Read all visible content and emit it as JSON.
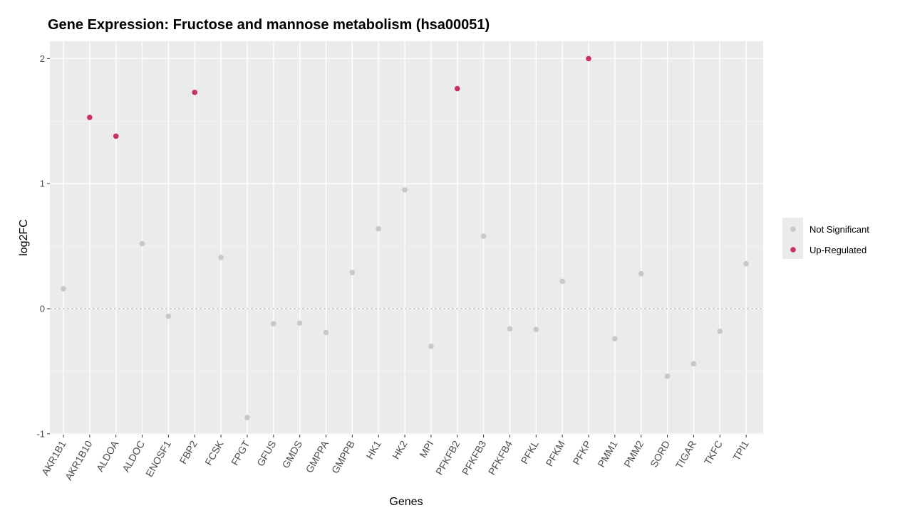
{
  "chart_data": {
    "type": "scatter",
    "title": "Gene Expression: Fructose and mannose metabolism (hsa00051)",
    "xlabel": "Genes",
    "ylabel": "log2FC",
    "ylim": [
      -1.0,
      2.13
    ],
    "yticks": [
      "-1",
      "0",
      "1",
      "2"
    ],
    "grid": true,
    "legend_position": "right",
    "reference_line": 0,
    "categories": [
      "AKR1B1",
      "AKR1B10",
      "ALDOA",
      "ALDOC",
      "ENOSF1",
      "FBP2",
      "FCSK",
      "FPGT",
      "GFUS",
      "GMDS",
      "GMPPA",
      "GMPPB",
      "HK1",
      "HK2",
      "MPI",
      "PFKFB2",
      "PFKFB3",
      "PFKFB4",
      "PFKL",
      "PFKM",
      "PFKP",
      "PMM1",
      "PMM2",
      "SORD",
      "TIGAR",
      "TKFC",
      "TPI1"
    ],
    "series": [
      {
        "name": "Not Significant",
        "color": "#c8c8c8",
        "points": [
          {
            "x": "AKR1B1",
            "y": 0.16
          },
          {
            "x": "ALDOC",
            "y": 0.52
          },
          {
            "x": "ENOSF1",
            "y": -0.06
          },
          {
            "x": "FCSK",
            "y": 0.41
          },
          {
            "x": "FPGT",
            "y": -0.87
          },
          {
            "x": "GFUS",
            "y": -0.12
          },
          {
            "x": "GMDS",
            "y": -0.115
          },
          {
            "x": "GMPPA",
            "y": -0.19
          },
          {
            "x": "GMPPB",
            "y": 0.29
          },
          {
            "x": "HK1",
            "y": 0.64
          },
          {
            "x": "HK2",
            "y": 0.95
          },
          {
            "x": "MPI",
            "y": -0.3
          },
          {
            "x": "PFKFB3",
            "y": 0.58
          },
          {
            "x": "PFKFB4",
            "y": -0.16
          },
          {
            "x": "PFKL",
            "y": -0.165
          },
          {
            "x": "PFKM",
            "y": 0.22
          },
          {
            "x": "PMM1",
            "y": -0.24
          },
          {
            "x": "PMM2",
            "y": 0.28
          },
          {
            "x": "SORD",
            "y": -0.54
          },
          {
            "x": "TIGAR",
            "y": -0.44
          },
          {
            "x": "TKFC",
            "y": -0.18
          },
          {
            "x": "TPI1",
            "y": 0.36
          }
        ]
      },
      {
        "name": "Up-Regulated",
        "color": "#c9325f",
        "points": [
          {
            "x": "AKR1B10",
            "y": 1.53
          },
          {
            "x": "ALDOA",
            "y": 1.38
          },
          {
            "x": "FBP2",
            "y": 1.73
          },
          {
            "x": "PFKFB2",
            "y": 1.76
          },
          {
            "x": "PFKP",
            "y": 2.0
          }
        ]
      }
    ]
  }
}
